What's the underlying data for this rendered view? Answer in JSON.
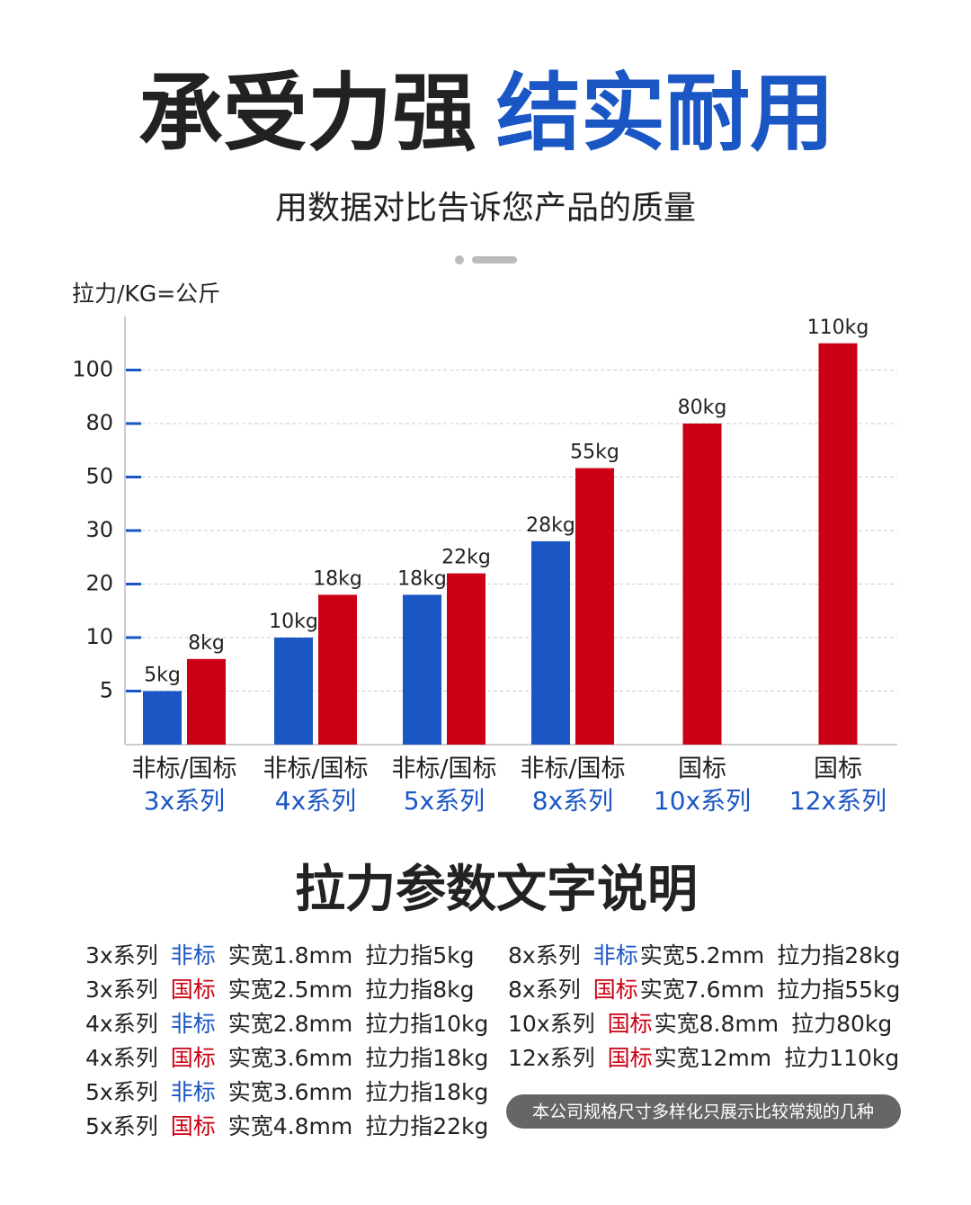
{
  "header": {
    "title_black": "承受力强",
    "title_blue": "结实耐用",
    "subtitle": "用数据对比告诉您产品的质量"
  },
  "chart_data": {
    "type": "bar",
    "y_label": "拉力/KG=公斤",
    "categories": [
      "3x系列",
      "4x系列",
      "5x系列",
      "8x系列",
      "10x系列",
      "12x系列"
    ],
    "category_standards": [
      "非标/国标",
      "非标/国标",
      "非标/国标",
      "非标/国标",
      "国标",
      "国标"
    ],
    "series": [
      {
        "color": "#1a56c4",
        "values": [
          5,
          10,
          18,
          28,
          null,
          null
        ],
        "value_labels": [
          "5kg",
          "10kg",
          "18kg",
          "28kg",
          null,
          null
        ]
      },
      {
        "color": "#cc0014",
        "values": [
          8,
          18,
          22,
          55,
          80,
          110
        ],
        "value_labels": [
          "8kg",
          "18kg",
          "22kg",
          "55kg",
          "80kg",
          "110kg"
        ]
      }
    ],
    "ylim": [
      0,
      120
    ],
    "yticks": [
      5,
      10,
      20,
      30,
      50,
      80,
      100
    ],
    "grid": true
  },
  "specs": {
    "title": "拉力参数文字说明",
    "left": [
      {
        "series": "3x系列",
        "standard": "非标",
        "width": "实宽1.8mm",
        "force": "拉力指5kg",
        "color": "#1a56c4"
      },
      {
        "series": "3x系列",
        "standard": "国标",
        "width": "实宽2.5mm",
        "force": "拉力指8kg",
        "color": "#cc0014"
      },
      {
        "series": "4x系列",
        "standard": "非标",
        "width": "实宽2.8mm",
        "force": "拉力指10kg",
        "color": "#1a56c4"
      },
      {
        "series": "4x系列",
        "standard": "国标",
        "width": "实宽3.6mm",
        "force": "拉力指18kg",
        "color": "#cc0014"
      },
      {
        "series": "5x系列",
        "standard": "非标",
        "width": "实宽3.6mm",
        "force": "拉力指18kg",
        "color": "#1a56c4"
      },
      {
        "series": "5x系列",
        "standard": "国标",
        "width": "实宽4.8mm",
        "force": "拉力指22kg",
        "color": "#cc0014"
      }
    ],
    "right": [
      {
        "series": "8x系列",
        "standard": "非标",
        "width": "实宽5.2mm",
        "force": "拉力指28kg",
        "color": "#1a56c4"
      },
      {
        "series": "8x系列",
        "standard": "国标",
        "width": "实宽7.6mm",
        "force": "拉力指55kg",
        "color": "#cc0014"
      },
      {
        "series": "10x系列",
        "standard": "国标",
        "width": "实宽8.8mm",
        "force": "拉力80kg",
        "color": "#cc0014"
      },
      {
        "series": "12x系列",
        "standard": "国标",
        "width": "实宽12mm",
        "force": "拉力110kg",
        "color": "#cc0014"
      }
    ],
    "note": "本公司规格尺寸多样化只展示比较常规的几种"
  }
}
